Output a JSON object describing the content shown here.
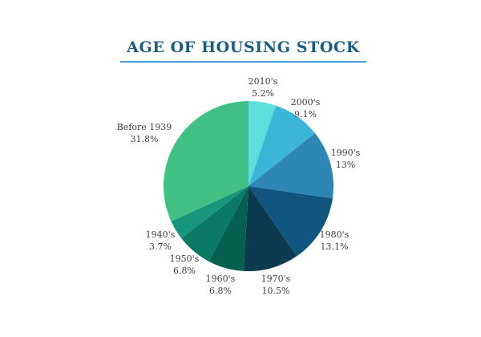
{
  "header": {
    "title": "AGE OF HOUSING STOCK",
    "title_color": "#1E5C80",
    "underline_color": "#4D9CD3",
    "label_color": "#3E3E3E",
    "background_color": "#FFFFFF"
  },
  "chart_data": {
    "type": "pie",
    "title": "AGE OF HOUSING STOCK",
    "direction": "clockwise",
    "start_angle_deg": 0,
    "legend": "none",
    "total": 100,
    "slices": [
      {
        "label": "2010's",
        "value": 5.2,
        "display": "5.2%",
        "color": "#5CDEDD"
      },
      {
        "label": "2000's",
        "value": 9.1,
        "display": "9.1%",
        "color": "#3DB5D8"
      },
      {
        "label": "1990's",
        "value": 13,
        "display": "13%",
        "color": "#2E86B6"
      },
      {
        "label": "1980's",
        "value": 13.1,
        "display": "13.1%",
        "color": "#10557D"
      },
      {
        "label": "1970's",
        "value": 10.5,
        "display": "10.5%",
        "color": "#0C3A4F"
      },
      {
        "label": "1960's",
        "value": 6.8,
        "display": "6.8%",
        "color": "#06604F"
      },
      {
        "label": "1950's",
        "value": 6.8,
        "display": "6.8%",
        "color": "#0B7A64"
      },
      {
        "label": "1940's",
        "value": 3.7,
        "display": "3.7%",
        "color": "#18957B"
      },
      {
        "label": "Before 1939",
        "value": 31.8,
        "display": "31.8%",
        "color": "#40C183"
      }
    ]
  }
}
